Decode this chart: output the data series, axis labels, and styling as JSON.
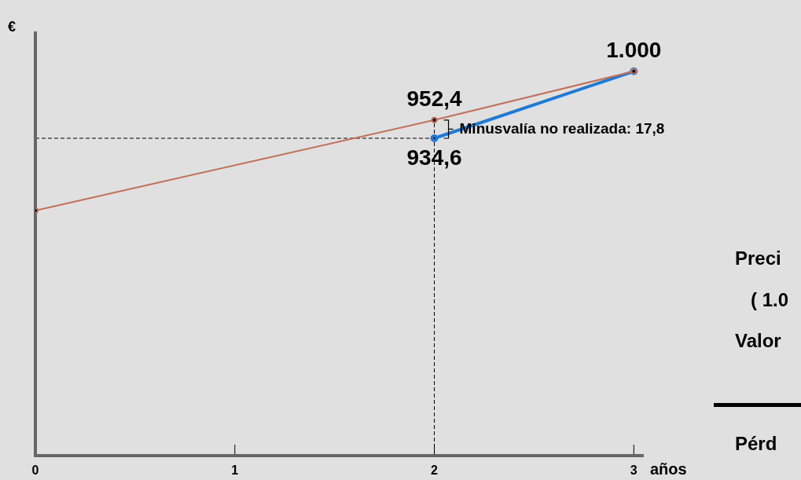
{
  "chart_data": {
    "type": "line",
    "xlabel": "años",
    "ylabel": "€",
    "xlim": [
      0,
      3.05
    ],
    "xticks": [
      0,
      1,
      2,
      3
    ],
    "ylim": [
      626,
      1039
    ],
    "tick_labels": "x",
    "legend": false,
    "marker": "circle",
    "line_style": "solid",
    "series": [
      {
        "color": "#c0705a",
        "x": [
          0,
          2,
          3
        ],
        "values": [
          864,
          952.4,
          1000
        ],
        "value_labels": [
          null,
          "952,4",
          null
        ]
      },
      {
        "color": "#1f7ad6",
        "x": [
          2,
          3
        ],
        "values": [
          934.6,
          1000
        ],
        "value_labels": [
          "934,6",
          "1.000"
        ]
      }
    ],
    "ref_lines": [
      {
        "axis": "y",
        "value": 934.6,
        "line_style": "dashed",
        "color": "#000000"
      },
      {
        "axis": "x",
        "value": 2,
        "line_style": "dashed",
        "color": "#000000"
      }
    ],
    "annotations": [
      {
        "text": "Minusvalía no realizada: 17,8",
        "x": 2,
        "y": 943.5
      },
      "Preci",
      "( 1.0",
      "Valor",
      "Pérd"
    ]
  }
}
